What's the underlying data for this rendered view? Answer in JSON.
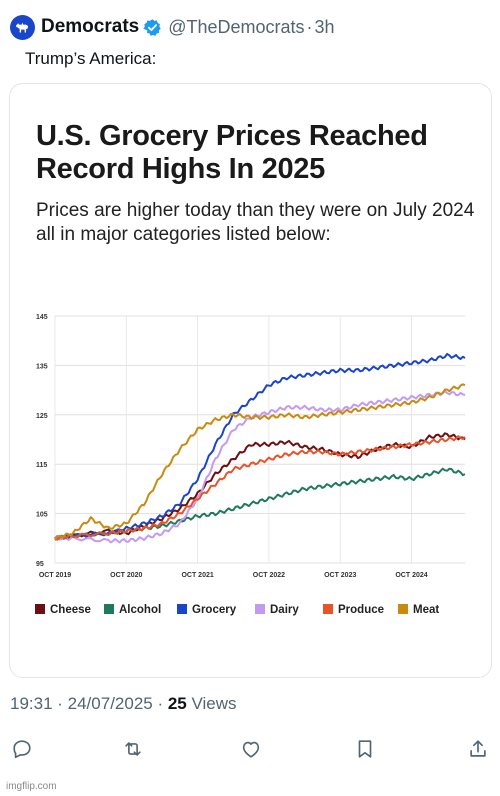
{
  "tweet": {
    "author_name": "Democrats",
    "handle": "@TheDemocrats",
    "separator": "·",
    "time_ago": "3h",
    "text": "Trump’s America:",
    "timestamp": "19:31 · 24/07/2025 · ",
    "views_count": "25",
    "views_label": " Views"
  },
  "colors": {
    "accent": "#1d9bf0",
    "avatar": "#1a47c9"
  },
  "icons": [
    "donkey-icon",
    "verified-badge-icon",
    "reply-icon",
    "retweet-icon",
    "like-icon",
    "bookmark-icon",
    "share-icon"
  ],
  "chart_data": {
    "type": "line",
    "title": "U.S. Grocery Prices Reached Record Highs In 2025",
    "subtitle": "Prices are higher today than they were on July 2024 all in major categories listed below:",
    "x_ticks": [
      "OCT 2019",
      "OCT 2020",
      "OCT 2021",
      "OCT 2022",
      "OCT 2023",
      "OCT 2024"
    ],
    "y_ticks": [
      95,
      105,
      115,
      125,
      135,
      145
    ],
    "ylim": [
      95,
      145
    ],
    "xlim": [
      2019.75,
      2025.5
    ],
    "grid": true,
    "legend_position": "bottom",
    "series": [
      {
        "name": "Cheese",
        "color": "#6b0f14",
        "x": [
          2019.75,
          2020.0,
          2020.5,
          2020.75,
          2021.0,
          2021.25,
          2021.5,
          2021.75,
          2022.0,
          2022.25,
          2022.5,
          2022.75,
          2023.0,
          2023.25,
          2023.5,
          2023.75,
          2024.0,
          2024.25,
          2024.5,
          2024.75,
          2025.0,
          2025.25,
          2025.5
        ],
        "y": [
          100,
          100.5,
          101.5,
          101,
          102.5,
          104,
          106,
          109,
          113,
          116,
          119,
          119,
          119.5,
          118.5,
          118,
          117,
          116.5,
          118,
          119,
          118.5,
          120.5,
          121,
          120
        ]
      },
      {
        "name": "Alcohol",
        "color": "#1f7a5c",
        "x": [
          2019.75,
          2020.0,
          2020.5,
          2020.75,
          2021.0,
          2021.25,
          2021.5,
          2021.75,
          2022.0,
          2022.25,
          2022.5,
          2022.75,
          2023.0,
          2023.25,
          2023.5,
          2023.75,
          2024.0,
          2024.25,
          2024.5,
          2024.75,
          2025.0,
          2025.25,
          2025.5
        ],
        "y": [
          100,
          100.5,
          101,
          101.5,
          102,
          102.5,
          103.5,
          104.5,
          105,
          106,
          107,
          108,
          109,
          110,
          110.5,
          111,
          111.5,
          112,
          112.5,
          112,
          113,
          114,
          113
        ]
      },
      {
        "name": "Grocery",
        "color": "#1b45c8",
        "x": [
          2019.75,
          2020.0,
          2020.5,
          2020.75,
          2021.0,
          2021.25,
          2021.5,
          2021.75,
          2022.0,
          2022.25,
          2022.5,
          2022.75,
          2023.0,
          2023.25,
          2023.5,
          2023.75,
          2024.0,
          2024.25,
          2024.5,
          2024.75,
          2025.0,
          2025.25,
          2025.5
        ],
        "y": [
          100,
          100.5,
          101,
          102,
          103,
          104.5,
          107,
          112,
          119,
          125,
          128,
          131,
          132.5,
          133,
          133.5,
          134,
          134,
          134.5,
          135,
          135.5,
          136,
          137,
          136.5
        ]
      },
      {
        "name": "Dairy",
        "color": "#c39af0",
        "x": [
          2019.75,
          2020.0,
          2020.5,
          2020.75,
          2021.0,
          2021.25,
          2021.5,
          2021.75,
          2022.0,
          2022.25,
          2022.5,
          2022.75,
          2023.0,
          2023.25,
          2023.5,
          2023.75,
          2024.0,
          2024.25,
          2024.5,
          2024.75,
          2025.0,
          2025.25,
          2025.5
        ],
        "y": [
          100,
          100,
          99.5,
          99.5,
          100,
          101,
          103,
          108,
          116,
          122,
          124.5,
          125.5,
          126.5,
          126.5,
          126,
          126,
          127,
          127.5,
          128,
          128.5,
          129,
          129.5,
          129
        ]
      },
      {
        "name": "Produce",
        "color": "#e8542a",
        "x": [
          2019.75,
          2020.0,
          2020.5,
          2020.75,
          2021.0,
          2021.25,
          2021.5,
          2021.75,
          2022.0,
          2022.25,
          2022.5,
          2022.75,
          2023.0,
          2023.25,
          2023.5,
          2023.75,
          2024.0,
          2024.25,
          2024.5,
          2024.75,
          2025.0,
          2025.25,
          2025.5
        ],
        "y": [
          100,
          100.5,
          101,
          101.5,
          102,
          103,
          105,
          108,
          111,
          114,
          115,
          116,
          117,
          117.5,
          117.5,
          117,
          117.5,
          118,
          118.5,
          119,
          119.5,
          120,
          120.5
        ]
      },
      {
        "name": "Meat",
        "color": "#c98a12",
        "x": [
          2019.75,
          2020.0,
          2020.25,
          2020.5,
          2020.75,
          2021.0,
          2021.25,
          2021.5,
          2021.75,
          2022.0,
          2022.25,
          2022.5,
          2022.75,
          2023.0,
          2023.25,
          2023.5,
          2023.75,
          2024.0,
          2024.25,
          2024.5,
          2024.75,
          2025.0,
          2025.25,
          2025.5
        ],
        "y": [
          100,
          101,
          104,
          102,
          103,
          107,
          113,
          118,
          122,
          124,
          125,
          124.5,
          124.5,
          125,
          124.5,
          125,
          125.5,
          126,
          126.5,
          127,
          127.5,
          128.5,
          130,
          131
        ]
      }
    ]
  }
}
